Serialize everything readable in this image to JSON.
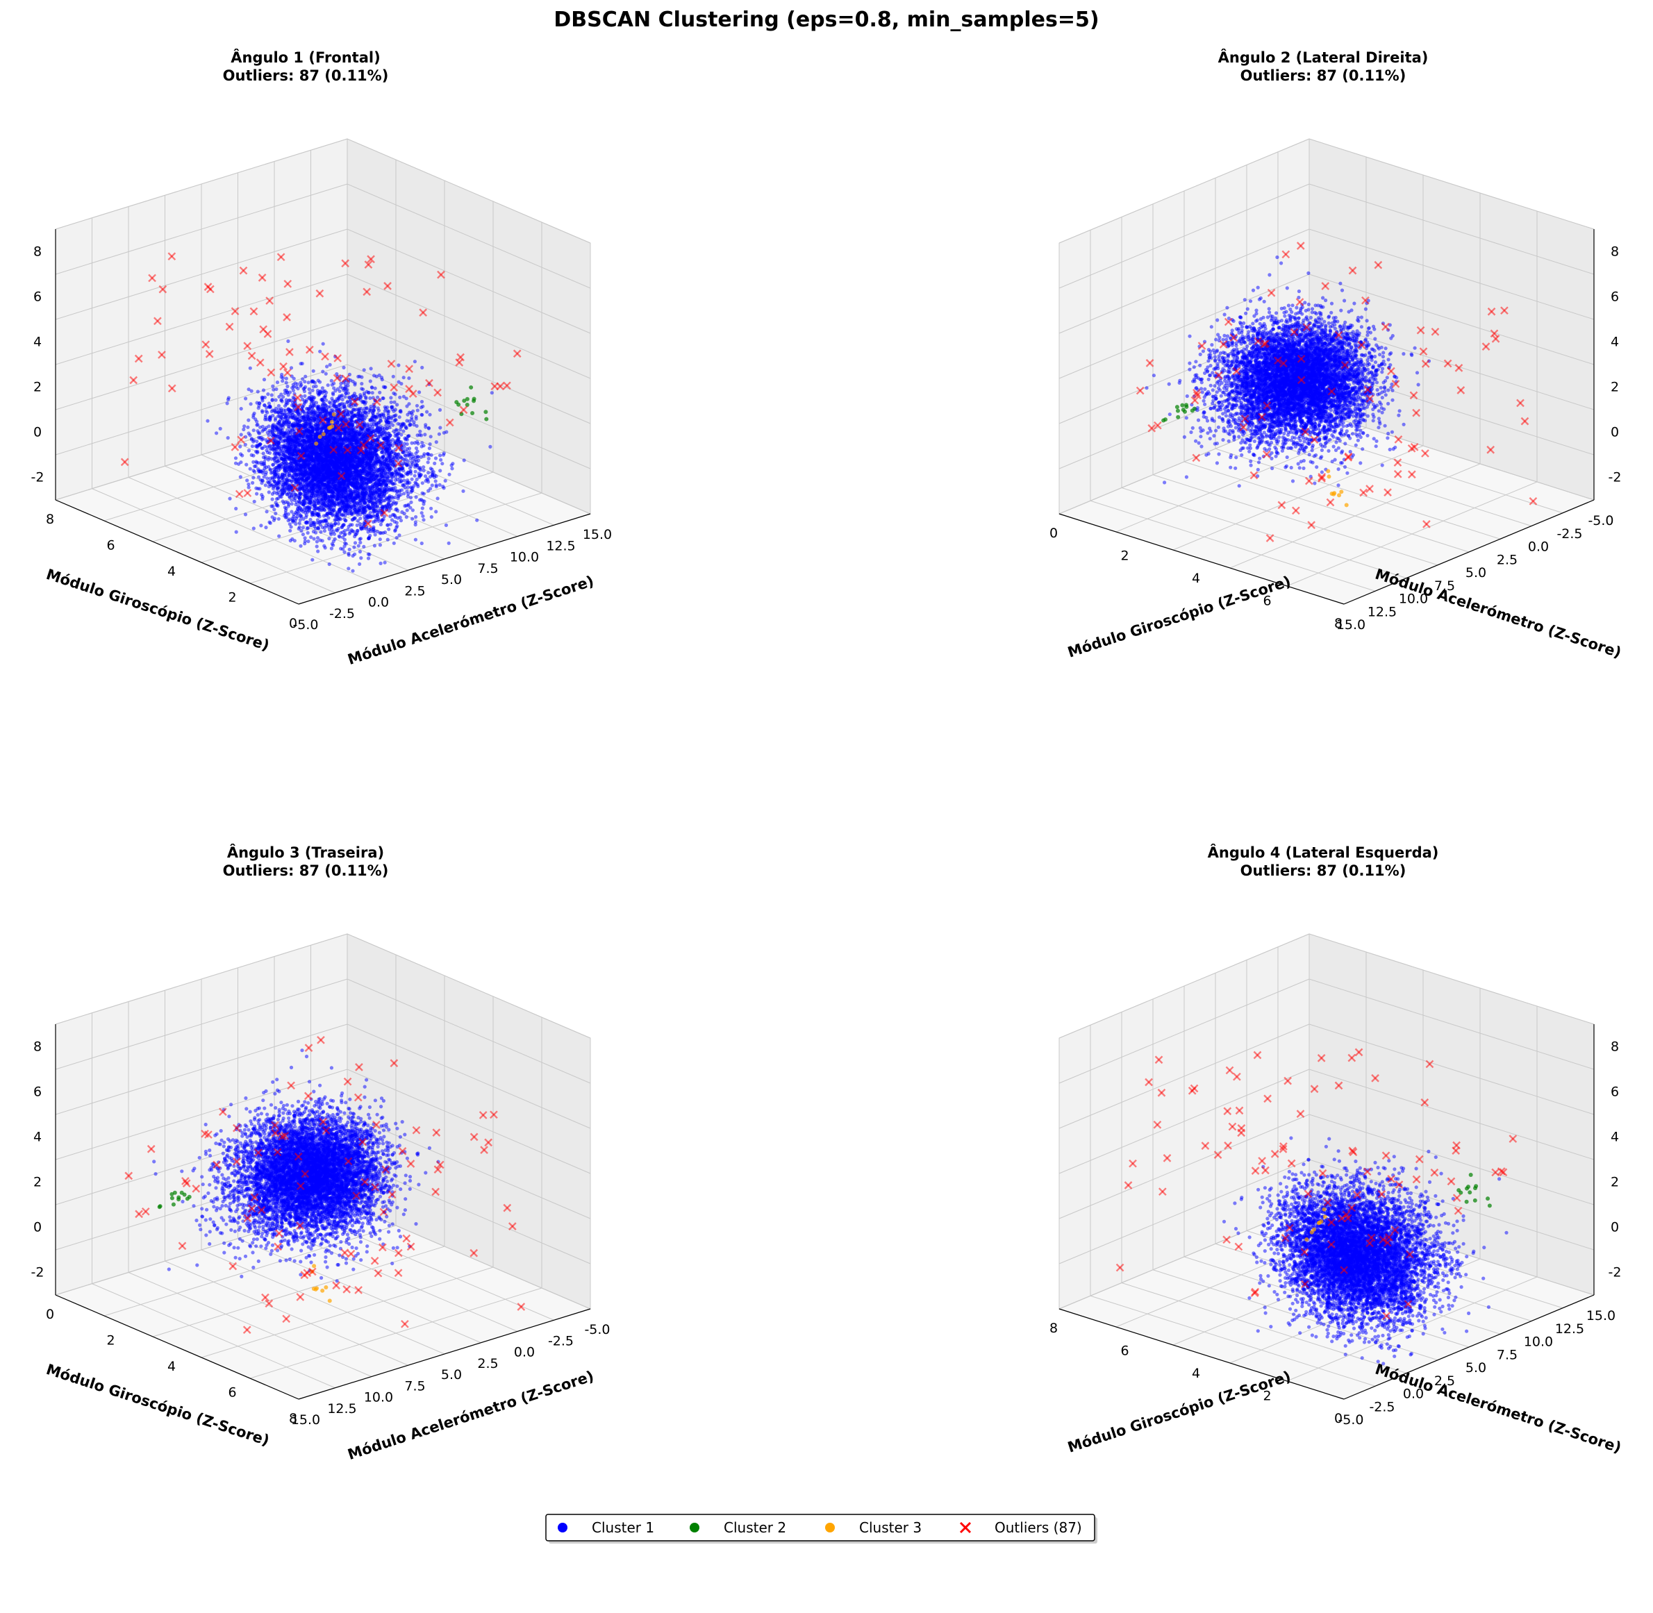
{
  "chart_data": {
    "type": "scatter",
    "title": "DBSCAN Clustering (eps=0.8, min_samples=5)",
    "subplots": [
      {
        "title": "Ângulo 1 (Frontal)",
        "subtitle": "Outliers: 87 (0.11%)"
      },
      {
        "title": "Ângulo 2 (Lateral Direita)",
        "subtitle": "Outliers: 87 (0.11%)"
      },
      {
        "title": "Ângulo 3 (Traseira)",
        "subtitle": "Outliers: 87 (0.11%)"
      },
      {
        "title": "Ângulo 4 (Lateral Esquerda)",
        "subtitle": "Outliers: 87 (0.11%)"
      }
    ],
    "axes": {
      "accel_label": "Módulo Acelerómetro (Z-Score)",
      "gyro_label": "Módulo Giroscópio (Z-Score)",
      "accel_ticks": [
        "-5.0",
        "-2.5",
        "0.0",
        "2.5",
        "5.0",
        "7.5",
        "10.0",
        "12.5",
        "15.0"
      ],
      "gyro_ticks": [
        "0",
        "2",
        "4",
        "6",
        "8"
      ],
      "z_ticks": [
        "-2",
        "0",
        "2",
        "4",
        "6",
        "8"
      ],
      "accel_range": [
        -5,
        15
      ],
      "gyro_range": [
        -1,
        8
      ],
      "z_range": [
        -3,
        9
      ],
      "grid": true
    },
    "series": [
      {
        "name": "Cluster 1",
        "color": "#0000ff",
        "marker": "circle"
      },
      {
        "name": "Cluster 2",
        "color": "#008000",
        "marker": "circle"
      },
      {
        "name": "Cluster 3",
        "color": "#ffa500",
        "marker": "circle"
      },
      {
        "name": "Outliers (87)",
        "color": "#ff0000",
        "marker": "x"
      }
    ],
    "outlier_count": 87,
    "legend_position": "bottom-center"
  }
}
